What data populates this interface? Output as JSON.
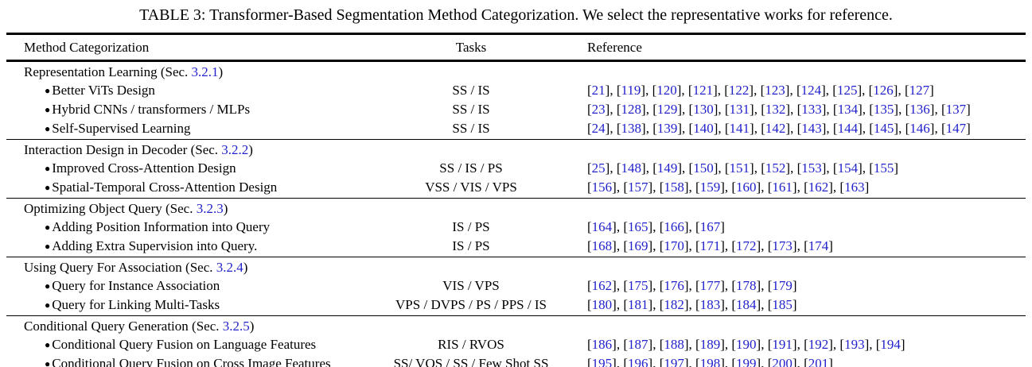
{
  "caption": "TABLE 3: Transformer-Based Segmentation Method Categorization. We select the representative works for reference.",
  "colors": {
    "link_blue": "#2222CC",
    "text": "#000000",
    "background": "#FFFFFF"
  },
  "icons": {
    "bullet_glyph": "●"
  },
  "table": {
    "columns": [
      "Method Categorization",
      "Tasks",
      "Reference"
    ],
    "sec_prefix": " (Sec. ",
    "sec_suffix": ")",
    "sections": [
      {
        "name": "Representation Learning",
        "sec": "3.2.1",
        "rows": [
          {
            "label": "Better ViTs Design",
            "tasks": "SS / IS",
            "refs": [
              "21",
              "119",
              "120",
              "121",
              "122",
              "123",
              "124",
              "125",
              "126",
              "127"
            ]
          },
          {
            "label": "Hybrid CNNs / transformers / MLPs",
            "tasks": "SS / IS",
            "refs": [
              "23",
              "128",
              "129",
              "130",
              "131",
              "132",
              "133",
              "134",
              "135",
              "136",
              "137"
            ]
          },
          {
            "label": "Self-Supervised Learning",
            "tasks": "SS / IS",
            "refs": [
              "24",
              "138",
              "139",
              "140",
              "141",
              "142",
              "143",
              "144",
              "145",
              "146",
              "147"
            ]
          }
        ]
      },
      {
        "name": "Interaction Design in Decoder",
        "sec": "3.2.2",
        "rows": [
          {
            "label": "Improved Cross-Attention Design",
            "tasks": "SS / IS / PS",
            "refs": [
              "25",
              "148",
              "149",
              "150",
              "151",
              "152",
              "153",
              "154",
              "155"
            ]
          },
          {
            "label": "Spatial-Temporal Cross-Attention Design",
            "tasks": "VSS / VIS / VPS",
            "refs": [
              "156",
              "157",
              "158",
              "159",
              "160",
              "161",
              "162",
              "163"
            ]
          }
        ]
      },
      {
        "name": "Optimizing Object Query",
        "sec": "3.2.3",
        "rows": [
          {
            "label": "Adding Position Information into Query",
            "tasks": "IS / PS",
            "refs": [
              "164",
              "165",
              "166",
              "167"
            ]
          },
          {
            "label": "Adding Extra Supervision into Query.",
            "tasks": "IS / PS",
            "refs": [
              "168",
              "169",
              "170",
              "171",
              "172",
              "173",
              "174"
            ]
          }
        ]
      },
      {
        "name": "Using Query For Association",
        "sec": "3.2.4",
        "rows": [
          {
            "label": "Query for Instance Association",
            "tasks": "VIS / VPS",
            "refs": [
              "162",
              "175",
              "176",
              "177",
              "178",
              "179"
            ]
          },
          {
            "label": "Query for Linking Multi-Tasks",
            "tasks": "VPS / DVPS / PS / PPS / IS",
            "refs": [
              "180",
              "181",
              "182",
              "183",
              "184",
              "185"
            ]
          }
        ]
      },
      {
        "name": "Conditional Query Generation",
        "sec": "3.2.5",
        "rows": [
          {
            "label": "Conditional Query Fusion on Language Features",
            "tasks": "RIS / RVOS",
            "refs": [
              "186",
              "187",
              "188",
              "189",
              "190",
              "191",
              "192",
              "193",
              "194"
            ]
          },
          {
            "label": "Conditional Query Fusion on Cross Image Features",
            "tasks": "SS/ VOS / SS / Few Shot SS",
            "refs": [
              "195",
              "196",
              "197",
              "198",
              "199",
              "200",
              "201"
            ]
          }
        ]
      }
    ]
  }
}
